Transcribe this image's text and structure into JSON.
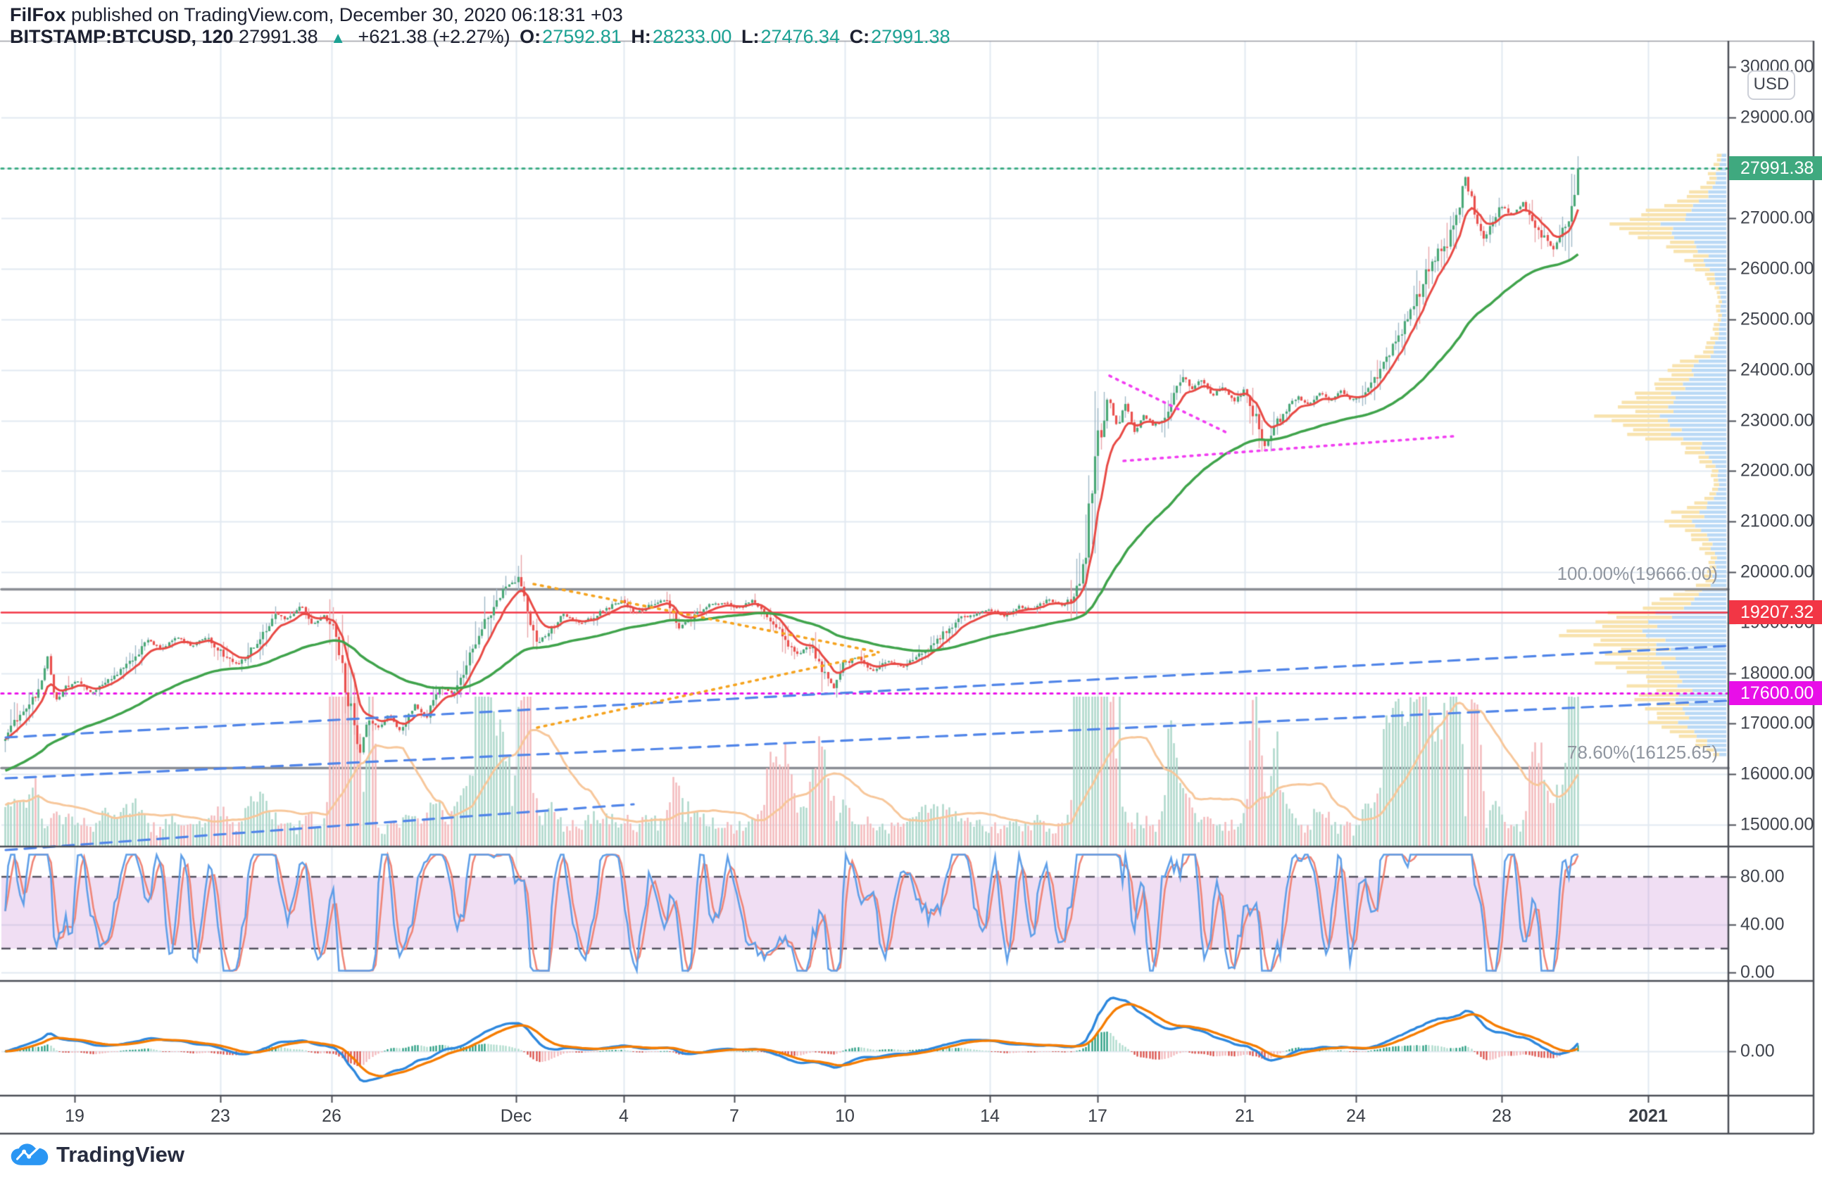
{
  "header": {
    "publisher": "FilFox",
    "publish_suffix": " published on TradingView.com, December 30, 2020 06:18:31 +03",
    "symbol": "BITSTAMP:BTCUSD, 120",
    "last": "27991.38",
    "direction_icon": "▲",
    "change": "+621.38 (+2.27%)",
    "o_label": "O:",
    "o": "27592.81",
    "h_label": "H:",
    "h": "28233.00",
    "l_label": "L:",
    "l": "27476.34",
    "c_label": "C:",
    "c": "27991.38"
  },
  "axes": {
    "currency_button": "USD",
    "price_ticks": [
      {
        "label": "30000.00",
        "price": 30000
      },
      {
        "label": "29000.00",
        "price": 29000
      },
      {
        "label": "28000.00",
        "price": 28000
      },
      {
        "label": "27000.00",
        "price": 27000
      },
      {
        "label": "26000.00",
        "price": 26000
      },
      {
        "label": "25000.00",
        "price": 25000
      },
      {
        "label": "24000.00",
        "price": 24000
      },
      {
        "label": "23000.00",
        "price": 23000
      },
      {
        "label": "22000.00",
        "price": 22000
      },
      {
        "label": "21000.00",
        "price": 21000
      },
      {
        "label": "20000.00",
        "price": 20000
      },
      {
        "label": "19000.00",
        "price": 19000
      },
      {
        "label": "18000.00",
        "price": 18000
      },
      {
        "label": "17000.00",
        "price": 17000
      },
      {
        "label": "16000.00",
        "price": 16000
      },
      {
        "label": "15000.00",
        "price": 15000
      }
    ],
    "time_ticks": [
      {
        "label": "19",
        "x": 106
      },
      {
        "label": "23",
        "x": 313
      },
      {
        "label": "26",
        "x": 471
      },
      {
        "label": "Dec",
        "x": 733
      },
      {
        "label": "4",
        "x": 886
      },
      {
        "label": "7",
        "x": 1043
      },
      {
        "label": "10",
        "x": 1200
      },
      {
        "label": "14",
        "x": 1406
      },
      {
        "label": "17",
        "x": 1559
      },
      {
        "label": "21",
        "x": 1768
      },
      {
        "label": "24",
        "x": 1926
      },
      {
        "label": "28",
        "x": 2133
      },
      {
        "label": "2021",
        "x": 2341,
        "bold": true
      }
    ],
    "stoch_ticks": [
      {
        "label": "80.00",
        "v": 80
      },
      {
        "label": "40.00",
        "v": 40
      },
      {
        "label": "0.00",
        "v": 0
      }
    ],
    "macd_ticks": [
      {
        "label": "0.00",
        "v": 0
      }
    ]
  },
  "price_line_labels": [
    {
      "key": "last-price",
      "text": "27991.38",
      "price": 27991.38,
      "bg": "#3fa97f"
    },
    {
      "key": "alert-line",
      "text": "19207.32",
      "price": 19207.32,
      "bg": "#f23645"
    },
    {
      "key": "level-line",
      "text": "17600.00",
      "price": 17600.0,
      "bg": "#e80fe8"
    }
  ],
  "fib_levels": [
    {
      "label": "100.00%(19666.00)",
      "price": 19666.0
    },
    {
      "label": "78.60%(16125.65)",
      "price": 16125.65
    }
  ],
  "logo": {
    "text": "TradingView"
  },
  "chart_data": {
    "type": "candlestick",
    "symbol": "BITSTAMP:BTCUSD",
    "interval_minutes": 120,
    "session": {
      "open": 27592.81,
      "high": 28233.0,
      "low": 27476.34,
      "close": 27991.38,
      "change": 621.38,
      "change_pct": 2.27
    },
    "ylim": [
      14550,
      30000
    ],
    "x_range_days": [
      "Nov 17 2020",
      "Dec 30 2020 06:00"
    ],
    "price_path_anchors": [
      [
        0,
        16650
      ],
      [
        0.5,
        17200
      ],
      [
        1,
        17650
      ],
      [
        1.25,
        18350
      ],
      [
        1.45,
        17450
      ],
      [
        1.8,
        17750
      ],
      [
        2.1,
        17850
      ],
      [
        2.45,
        17600
      ],
      [
        3,
        17900
      ],
      [
        3.5,
        18200
      ],
      [
        4,
        18650
      ],
      [
        4.35,
        18480
      ],
      [
        4.8,
        18720
      ],
      [
        5.2,
        18540
      ],
      [
        5.6,
        18720
      ],
      [
        6,
        18420
      ],
      [
        6.5,
        18160
      ],
      [
        7,
        18620
      ],
      [
        7.5,
        19180
      ],
      [
        7.8,
        19060
      ],
      [
        8.2,
        19340
      ],
      [
        8.5,
        18960
      ],
      [
        8.85,
        19150
      ],
      [
        9.05,
        18980
      ],
      [
        9.3,
        18250
      ],
      [
        9.55,
        17350
      ],
      [
        9.8,
        16350
      ],
      [
        10.05,
        17150
      ],
      [
        10.3,
        16880
      ],
      [
        10.6,
        17180
      ],
      [
        10.95,
        16830
      ],
      [
        11.3,
        17380
      ],
      [
        11.65,
        17120
      ],
      [
        12,
        17760
      ],
      [
        12.4,
        17620
      ],
      [
        12.8,
        18280
      ],
      [
        13.2,
        18950
      ],
      [
        13.6,
        19480
      ],
      [
        13.95,
        19780
      ],
      [
        14.2,
        19880
      ],
      [
        14.45,
        19080
      ],
      [
        14.7,
        18620
      ],
      [
        15,
        18820
      ],
      [
        15.4,
        19160
      ],
      [
        15.8,
        18980
      ],
      [
        16.2,
        19080
      ],
      [
        16.6,
        19280
      ],
      [
        17,
        19420
      ],
      [
        17.4,
        19180
      ],
      [
        17.8,
        19340
      ],
      [
        18.2,
        19480
      ],
      [
        18.6,
        18900
      ],
      [
        19,
        19160
      ],
      [
        19.4,
        19340
      ],
      [
        19.8,
        19400
      ],
      [
        20.2,
        19280
      ],
      [
        20.6,
        19460
      ],
      [
        21,
        19150
      ],
      [
        21.4,
        18780
      ],
      [
        21.8,
        18350
      ],
      [
        22.2,
        18560
      ],
      [
        22.6,
        17950
      ],
      [
        22.85,
        17700
      ],
      [
        23.1,
        18180
      ],
      [
        23.5,
        18320
      ],
      [
        23.9,
        18020
      ],
      [
        24.3,
        18260
      ],
      [
        24.7,
        18120
      ],
      [
        25.1,
        18300
      ],
      [
        25.5,
        18560
      ],
      [
        25.9,
        18820
      ],
      [
        26.3,
        19080
      ],
      [
        26.7,
        19160
      ],
      [
        27.1,
        19260
      ],
      [
        27.5,
        19140
      ],
      [
        27.9,
        19320
      ],
      [
        28.3,
        19260
      ],
      [
        28.7,
        19460
      ],
      [
        29.1,
        19340
      ],
      [
        29.45,
        19480
      ],
      [
        29.7,
        20250
      ],
      [
        29.9,
        21400
      ],
      [
        30.1,
        22650
      ],
      [
        30.35,
        23450
      ],
      [
        30.6,
        22900
      ],
      [
        30.85,
        23320
      ],
      [
        31.1,
        22750
      ],
      [
        31.35,
        23120
      ],
      [
        31.6,
        22880
      ],
      [
        31.85,
        23060
      ],
      [
        32.1,
        23320
      ],
      [
        32.4,
        23920
      ],
      [
        32.65,
        23620
      ],
      [
        32.9,
        23840
      ],
      [
        33.2,
        23480
      ],
      [
        33.5,
        23680
      ],
      [
        33.8,
        23380
      ],
      [
        34.1,
        23580
      ],
      [
        34.4,
        23050
      ],
      [
        34.65,
        22480
      ],
      [
        34.95,
        22900
      ],
      [
        35.25,
        23220
      ],
      [
        35.55,
        23480
      ],
      [
        35.85,
        23300
      ],
      [
        36.15,
        23560
      ],
      [
        36.45,
        23380
      ],
      [
        36.75,
        23580
      ],
      [
        37.05,
        23400
      ],
      [
        37.35,
        23520
      ],
      [
        37.65,
        23780
      ],
      [
        37.95,
        24150
      ],
      [
        38.25,
        24550
      ],
      [
        38.55,
        24980
      ],
      [
        38.85,
        25400
      ],
      [
        39.15,
        26050
      ],
      [
        39.45,
        26380
      ],
      [
        39.7,
        26550
      ],
      [
        39.95,
        27150
      ],
      [
        40.15,
        27850
      ],
      [
        40.4,
        27150
      ],
      [
        40.65,
        26550
      ],
      [
        40.9,
        26950
      ],
      [
        41.15,
        27250
      ],
      [
        41.45,
        27050
      ],
      [
        41.75,
        27300
      ],
      [
        42.05,
        26900
      ],
      [
        42.35,
        26600
      ],
      [
        42.6,
        26350
      ],
      [
        42.8,
        26750
      ],
      [
        43,
        27050
      ],
      [
        43.15,
        27450
      ],
      [
        43.25,
        27991.38
      ]
    ],
    "volume_spike_windows": [
      [
        9.0,
        10.3,
        3.4
      ],
      [
        13.0,
        14.5,
        2.6
      ],
      [
        18.4,
        18.9,
        1.8
      ],
      [
        21.0,
        22.9,
        2.0
      ],
      [
        29.4,
        30.7,
        4.6
      ],
      [
        32.0,
        32.7,
        2.0
      ],
      [
        34.2,
        35.0,
        2.2
      ],
      [
        36.0,
        36.5,
        1.6
      ],
      [
        37.9,
        40.7,
        2.3
      ],
      [
        41.9,
        42.7,
        1.9
      ],
      [
        43.0,
        43.3,
        2.2
      ]
    ],
    "volume_profile_anchors": [
      [
        215,
        10,
        0.45
      ],
      [
        240,
        18,
        0.45
      ],
      [
        260,
        35,
        0.45
      ],
      [
        280,
        70,
        0.48
      ],
      [
        300,
        110,
        0.5
      ],
      [
        312,
        152,
        0.5
      ],
      [
        322,
        130,
        0.48
      ],
      [
        340,
        95,
        0.46
      ],
      [
        360,
        55,
        0.44
      ],
      [
        380,
        40,
        0.42
      ],
      [
        400,
        20,
        0.4
      ],
      [
        430,
        12,
        0.4
      ],
      [
        460,
        15,
        0.42
      ],
      [
        490,
        25,
        0.44
      ],
      [
        510,
        55,
        0.45
      ],
      [
        530,
        85,
        0.46
      ],
      [
        550,
        105,
        0.46
      ],
      [
        570,
        130,
        0.46
      ],
      [
        585,
        160,
        0.47
      ],
      [
        600,
        150,
        0.47
      ],
      [
        615,
        120,
        0.46
      ],
      [
        630,
        70,
        0.44
      ],
      [
        650,
        35,
        0.42
      ],
      [
        680,
        15,
        0.4
      ],
      [
        700,
        25,
        0.44
      ],
      [
        720,
        60,
        0.46
      ],
      [
        740,
        80,
        0.46
      ],
      [
        760,
        55,
        0.44
      ],
      [
        780,
        30,
        0.42
      ],
      [
        800,
        20,
        0.42
      ],
      [
        820,
        30,
        0.44
      ],
      [
        840,
        60,
        0.45
      ],
      [
        855,
        90,
        0.46
      ],
      [
        865,
        130,
        0.47
      ],
      [
        875,
        170,
        0.47
      ],
      [
        885,
        200,
        0.47
      ],
      [
        895,
        215,
        0.47
      ],
      [
        905,
        200,
        0.46
      ],
      [
        915,
        185,
        0.46
      ],
      [
        925,
        170,
        0.46
      ],
      [
        935,
        160,
        0.45
      ],
      [
        945,
        150,
        0.45
      ],
      [
        955,
        140,
        0.45
      ],
      [
        965,
        130,
        0.45
      ],
      [
        975,
        120,
        0.45
      ],
      [
        985,
        110,
        0.45
      ],
      [
        995,
        118,
        0.46
      ],
      [
        1005,
        100,
        0.45
      ],
      [
        1015,
        85,
        0.44
      ],
      [
        1025,
        95,
        0.45
      ],
      [
        1035,
        75,
        0.44
      ],
      [
        1045,
        60,
        0.43
      ],
      [
        1055,
        40,
        0.42
      ],
      [
        1065,
        25,
        0.4
      ],
      [
        1075,
        12,
        0.4
      ]
    ],
    "horizontal_lines": [
      {
        "name": "current-price",
        "price": 27991.38,
        "style": "dotted",
        "color": "#3fae85"
      },
      {
        "name": "alert",
        "price": 19207.32,
        "style": "solid",
        "color": "#f23645"
      },
      {
        "name": "fib-100",
        "price": 19666.0,
        "style": "solid",
        "color": "#8a8d94"
      },
      {
        "name": "fib-786",
        "price": 16125.65,
        "style": "solid",
        "color": "#8a8d94"
      },
      {
        "name": "magenta-level",
        "price": 17600.0,
        "style": "dotted",
        "color": "#ea13ea"
      }
    ],
    "trendlines": [
      {
        "name": "rising-channel-upper",
        "color": "#4f84e8",
        "style": "dashed",
        "pts": [
          [
            8,
            1048
          ],
          [
            2452,
            918
          ]
        ]
      },
      {
        "name": "rising-channel-mid",
        "color": "#4f84e8",
        "style": "dashed",
        "pts": [
          [
            8,
            1106
          ],
          [
            2452,
            996
          ]
        ]
      },
      {
        "name": "rising-channel-lower",
        "color": "#4f84e8",
        "style": "dashed",
        "pts": [
          [
            8,
            1208
          ],
          [
            900,
            1143
          ]
        ]
      },
      {
        "name": "orange-pennant-upper",
        "color": "#f5a31f",
        "style": "dotted",
        "pts": [
          [
            758,
            830
          ],
          [
            1248,
            927
          ]
        ]
      },
      {
        "name": "orange-pennant-lower",
        "color": "#f5a31f",
        "style": "dotted",
        "pts": [
          [
            763,
            1034
          ],
          [
            1248,
            929
          ]
        ]
      },
      {
        "name": "magenta-pennant-upper",
        "color": "#f13ef1",
        "style": "dotted",
        "pts": [
          [
            1576,
            534
          ],
          [
            1747,
            617
          ]
        ]
      },
      {
        "name": "magenta-pennant-lower",
        "color": "#f13ef1",
        "style": "dotted",
        "pts": [
          [
            1596,
            655
          ],
          [
            2064,
            620
          ]
        ]
      }
    ],
    "indicators": {
      "stochastic": {
        "range": [
          0,
          100
        ],
        "bands": [
          20,
          80
        ],
        "ticks": [
          80,
          40,
          0
        ]
      },
      "macd": {
        "zero": 0
      }
    }
  },
  "colors": {
    "up": "#4aa877",
    "down": "#e9504e",
    "wick_up": "#9fb8c6",
    "wick_down": "#e8a5a8",
    "ma_fast": "#e84a45",
    "ma_slow": "#3fa34b",
    "vol_up": "#aed8cb",
    "vol_down": "#f3babd",
    "vol_ma": "#f7c79b",
    "profile_yellow": "#f8e3ae",
    "profile_blue": "#bad9f5",
    "grid": "#e2eaf1",
    "border": "#4a4d55",
    "frame": "#9a9da5",
    "stoch_k": "#5f9fe8",
    "stoch_d": "#ef8577",
    "stoch_band": "rgba(186,104,200,0.22)",
    "stoch_dash": "#52505e",
    "macd_line": "#2d87dd",
    "macd_signal": "#f57c00",
    "hist_pos_dark": "#219a7d",
    "hist_pos_pale": "#aadaca",
    "hist_neg_dark": "#d94a43",
    "hist_neg_pale": "#f2b6ba"
  }
}
